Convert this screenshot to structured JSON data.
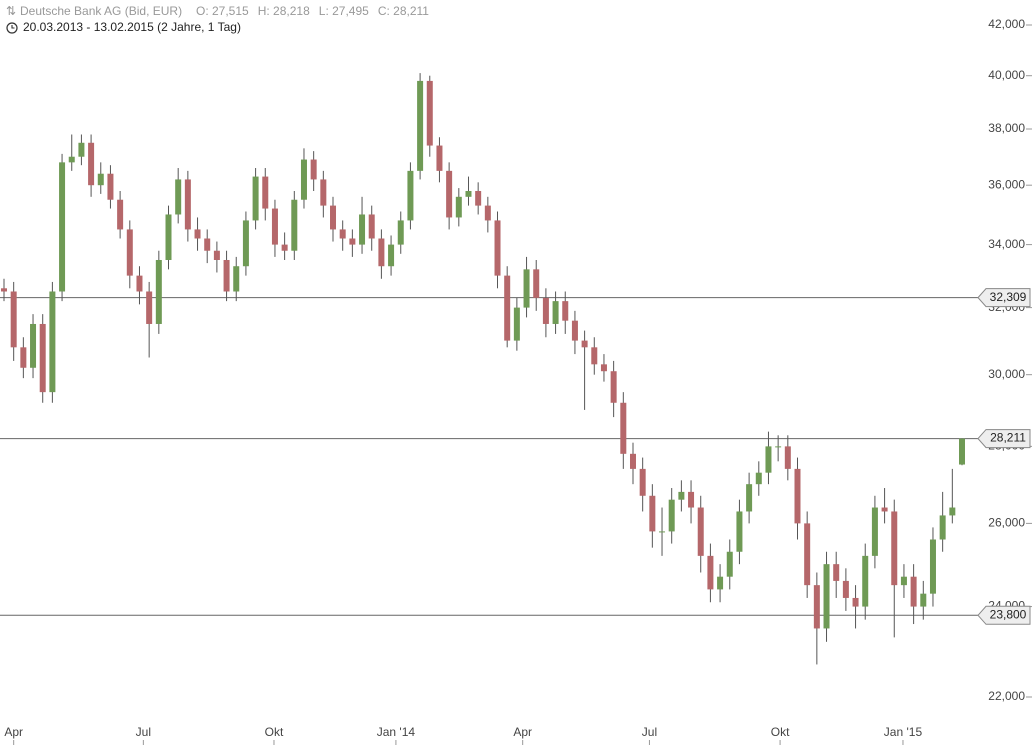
{
  "chart_data": {
    "type": "candlestick",
    "title": "Deutsche Bank AG (Bid, EUR)",
    "annotations": [
      "O: 27,515",
      "H: 28,218",
      "L: 27,495",
      "C: 28,211"
    ],
    "subtitle": "20.03.2013 - 13.02.2015 (2 Jahre, 1 Tag)",
    "log_scale": true,
    "up_color": "#6f9a55",
    "down_color": "#b5676a",
    "wick_color": "#555555",
    "xlim": [
      0,
      99
    ],
    "xticks": [
      {
        "value": 1.0,
        "label": "Apr"
      },
      {
        "value": 14.4,
        "label": "Jul"
      },
      {
        "value": 27.9,
        "label": "Okt"
      },
      {
        "value": 40.5,
        "label": "Jan '14"
      },
      {
        "value": 53.6,
        "label": "Apr"
      },
      {
        "value": 66.7,
        "label": "Jul"
      },
      {
        "value": 80.2,
        "label": "Okt"
      },
      {
        "value": 92.9,
        "label": "Jan '15"
      }
    ],
    "ylim": [
      22000,
      42000
    ],
    "yticks": [
      {
        "value": 22000,
        "label": "22,000"
      },
      {
        "value": 24000,
        "label": "24,000"
      },
      {
        "value": 26000,
        "label": "26,000"
      },
      {
        "value": 28000,
        "label": "28,000"
      },
      {
        "value": 30000,
        "label": "30,000"
      },
      {
        "value": 32000,
        "label": "32,000"
      },
      {
        "value": 34000,
        "label": "34,000"
      },
      {
        "value": 36000,
        "label": "36,000"
      },
      {
        "value": 38000,
        "label": "38,000"
      },
      {
        "value": 40000,
        "label": "40,000"
      },
      {
        "value": 42000,
        "label": "42,000"
      }
    ],
    "hlines": [
      {
        "value": 32309,
        "label": "32,309"
      },
      {
        "value": 28211,
        "label": "28,211"
      },
      {
        "value": 23800,
        "label": "23,800"
      }
    ],
    "open": [
      32600,
      32500,
      30800,
      30200,
      31500,
      29500,
      32500,
      36800,
      37000,
      37500,
      36000,
      36400,
      35500,
      34500,
      33000,
      32500,
      31500,
      33500,
      35000,
      36200,
      34500,
      34200,
      33800,
      33500,
      32500,
      33300,
      34800,
      36300,
      35200,
      34000,
      33800,
      35500,
      36900,
      36200,
      35300,
      34500,
      34200,
      34000,
      35000,
      34200,
      33300,
      34000,
      34800,
      36500,
      39800,
      37400,
      36500,
      34900,
      35600,
      35800,
      35300,
      34800,
      33000,
      31000,
      32000,
      33200,
      32300,
      31500,
      32200,
      31600,
      31000,
      30800,
      30300,
      30100,
      29200,
      27800,
      27400,
      26700,
      25800,
      25800,
      26600,
      26800,
      26400,
      25200,
      24400,
      24700,
      25300,
      26300,
      27000,
      27300,
      28000,
      28000,
      27400,
      26000,
      24500,
      23500,
      25000,
      24600,
      24200,
      24000,
      25200,
      26400,
      26300,
      24500,
      24700,
      24000,
      24300,
      25600,
      26200,
      27515
    ],
    "high": [
      32900,
      32800,
      31100,
      31800,
      31800,
      32800,
      37100,
      37800,
      37800,
      37800,
      36800,
      36700,
      35800,
      34800,
      33300,
      32800,
      33800,
      35300,
      36600,
      36500,
      34900,
      34500,
      34100,
      33800,
      33600,
      35100,
      36600,
      36600,
      35500,
      34400,
      35800,
      37300,
      37200,
      36500,
      35600,
      34800,
      34500,
      35600,
      35300,
      34500,
      34300,
      35100,
      36800,
      40100,
      40000,
      37700,
      36800,
      35900,
      36300,
      36100,
      35600,
      35100,
      33300,
      32300,
      33600,
      33500,
      32600,
      32500,
      32500,
      31900,
      31300,
      31100,
      30600,
      30400,
      29500,
      28100,
      27700,
      27000,
      26400,
      26900,
      27100,
      27100,
      26700,
      25500,
      25000,
      25600,
      26600,
      27300,
      27600,
      28400,
      28300,
      28300,
      27700,
      26300,
      24800,
      25300,
      25300,
      24900,
      24500,
      25500,
      26700,
      26900,
      26600,
      25000,
      25000,
      24600,
      25900,
      26800,
      27400,
      28218
    ],
    "low": [
      32200,
      30400,
      29900,
      29900,
      29200,
      29200,
      32200,
      36500,
      36700,
      35600,
      35700,
      35200,
      34200,
      32600,
      32100,
      30500,
      31200,
      33200,
      34700,
      34100,
      33800,
      33400,
      33100,
      32200,
      32200,
      33000,
      34500,
      34800,
      33600,
      33500,
      33500,
      35200,
      35800,
      34900,
      34100,
      33800,
      33600,
      33700,
      33800,
      32900,
      33000,
      33700,
      34500,
      36200,
      37000,
      36100,
      34500,
      34600,
      35300,
      35000,
      34400,
      32600,
      30800,
      30700,
      31700,
      31900,
      31100,
      31200,
      31200,
      30600,
      29000,
      30000,
      29800,
      28800,
      27400,
      27000,
      26300,
      25400,
      25200,
      25500,
      26300,
      26000,
      24800,
      24100,
      24100,
      24400,
      25000,
      26000,
      26700,
      27000,
      27600,
      27100,
      25600,
      24200,
      22700,
      23200,
      24200,
      23900,
      23500,
      23700,
      24900,
      26000,
      23300,
      24200,
      23600,
      23700,
      24000,
      25300,
      26000,
      27495
    ],
    "close": [
      32500,
      30800,
      30200,
      31500,
      29500,
      32500,
      36800,
      37000,
      37500,
      36000,
      36400,
      35500,
      34500,
      33000,
      32500,
      31500,
      33500,
      35000,
      36200,
      34500,
      34200,
      33800,
      33500,
      32500,
      33300,
      34800,
      36300,
      35200,
      34000,
      33800,
      35500,
      36900,
      36200,
      35300,
      34500,
      34200,
      34000,
      35000,
      34200,
      33300,
      34000,
      34800,
      36500,
      39800,
      37400,
      36500,
      34900,
      35600,
      35800,
      35300,
      34800,
      33000,
      31000,
      32000,
      33200,
      32300,
      31500,
      32200,
      31600,
      31000,
      30800,
      30300,
      30100,
      29200,
      27800,
      27400,
      26700,
      25800,
      25800,
      26600,
      26800,
      26400,
      25200,
      24400,
      24700,
      25300,
      26300,
      27000,
      27300,
      28000,
      28000,
      27400,
      26000,
      24500,
      23500,
      25000,
      24600,
      24200,
      24000,
      25200,
      26400,
      26300,
      24500,
      24700,
      24000,
      24300,
      25600,
      26200,
      26400,
      28211
    ]
  }
}
